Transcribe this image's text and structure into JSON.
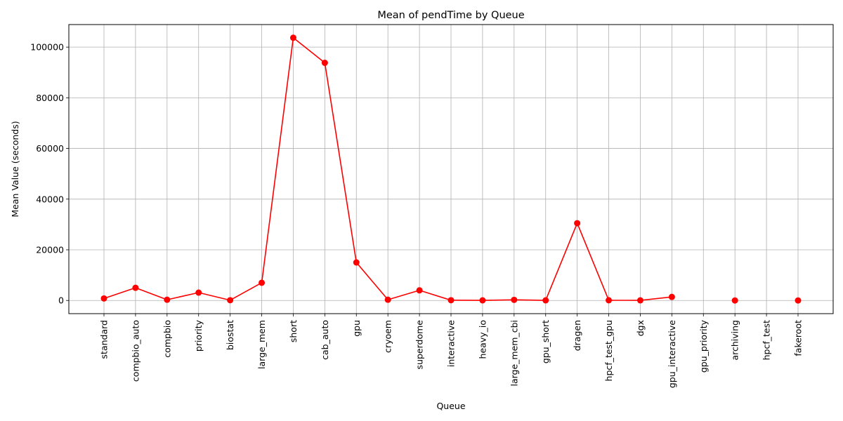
{
  "chart_data": {
    "type": "line",
    "title": "Mean of pendTime by Queue",
    "xlabel": "Queue",
    "ylabel": "Mean Value (seconds)",
    "categories": [
      "standard",
      "compbio_auto",
      "compbio",
      "priority",
      "biostat",
      "large_mem",
      "short",
      "cab_auto",
      "gpu",
      "cryoem",
      "superdome",
      "interactive",
      "heavy_io",
      "large_mem_cbi",
      "gpu_short",
      "dragen",
      "hpcf_test_gpu",
      "dgx",
      "gpu_interactive",
      "gpu_priority",
      "archiving",
      "hpcf_test",
      "fakeroot"
    ],
    "series": [
      {
        "color": "#ff0000",
        "marker": "circle",
        "values": [
          800,
          5000,
          300,
          3100,
          100,
          7000,
          103700,
          93800,
          15000,
          300,
          4000,
          100,
          50,
          250,
          50,
          30500,
          80,
          50,
          1400,
          null,
          0,
          null,
          0
        ]
      }
    ],
    "yticks": [
      0,
      20000,
      40000,
      60000,
      80000,
      100000
    ],
    "ylim": [
      -5200,
      108900
    ],
    "grid": true,
    "legend": "none"
  }
}
